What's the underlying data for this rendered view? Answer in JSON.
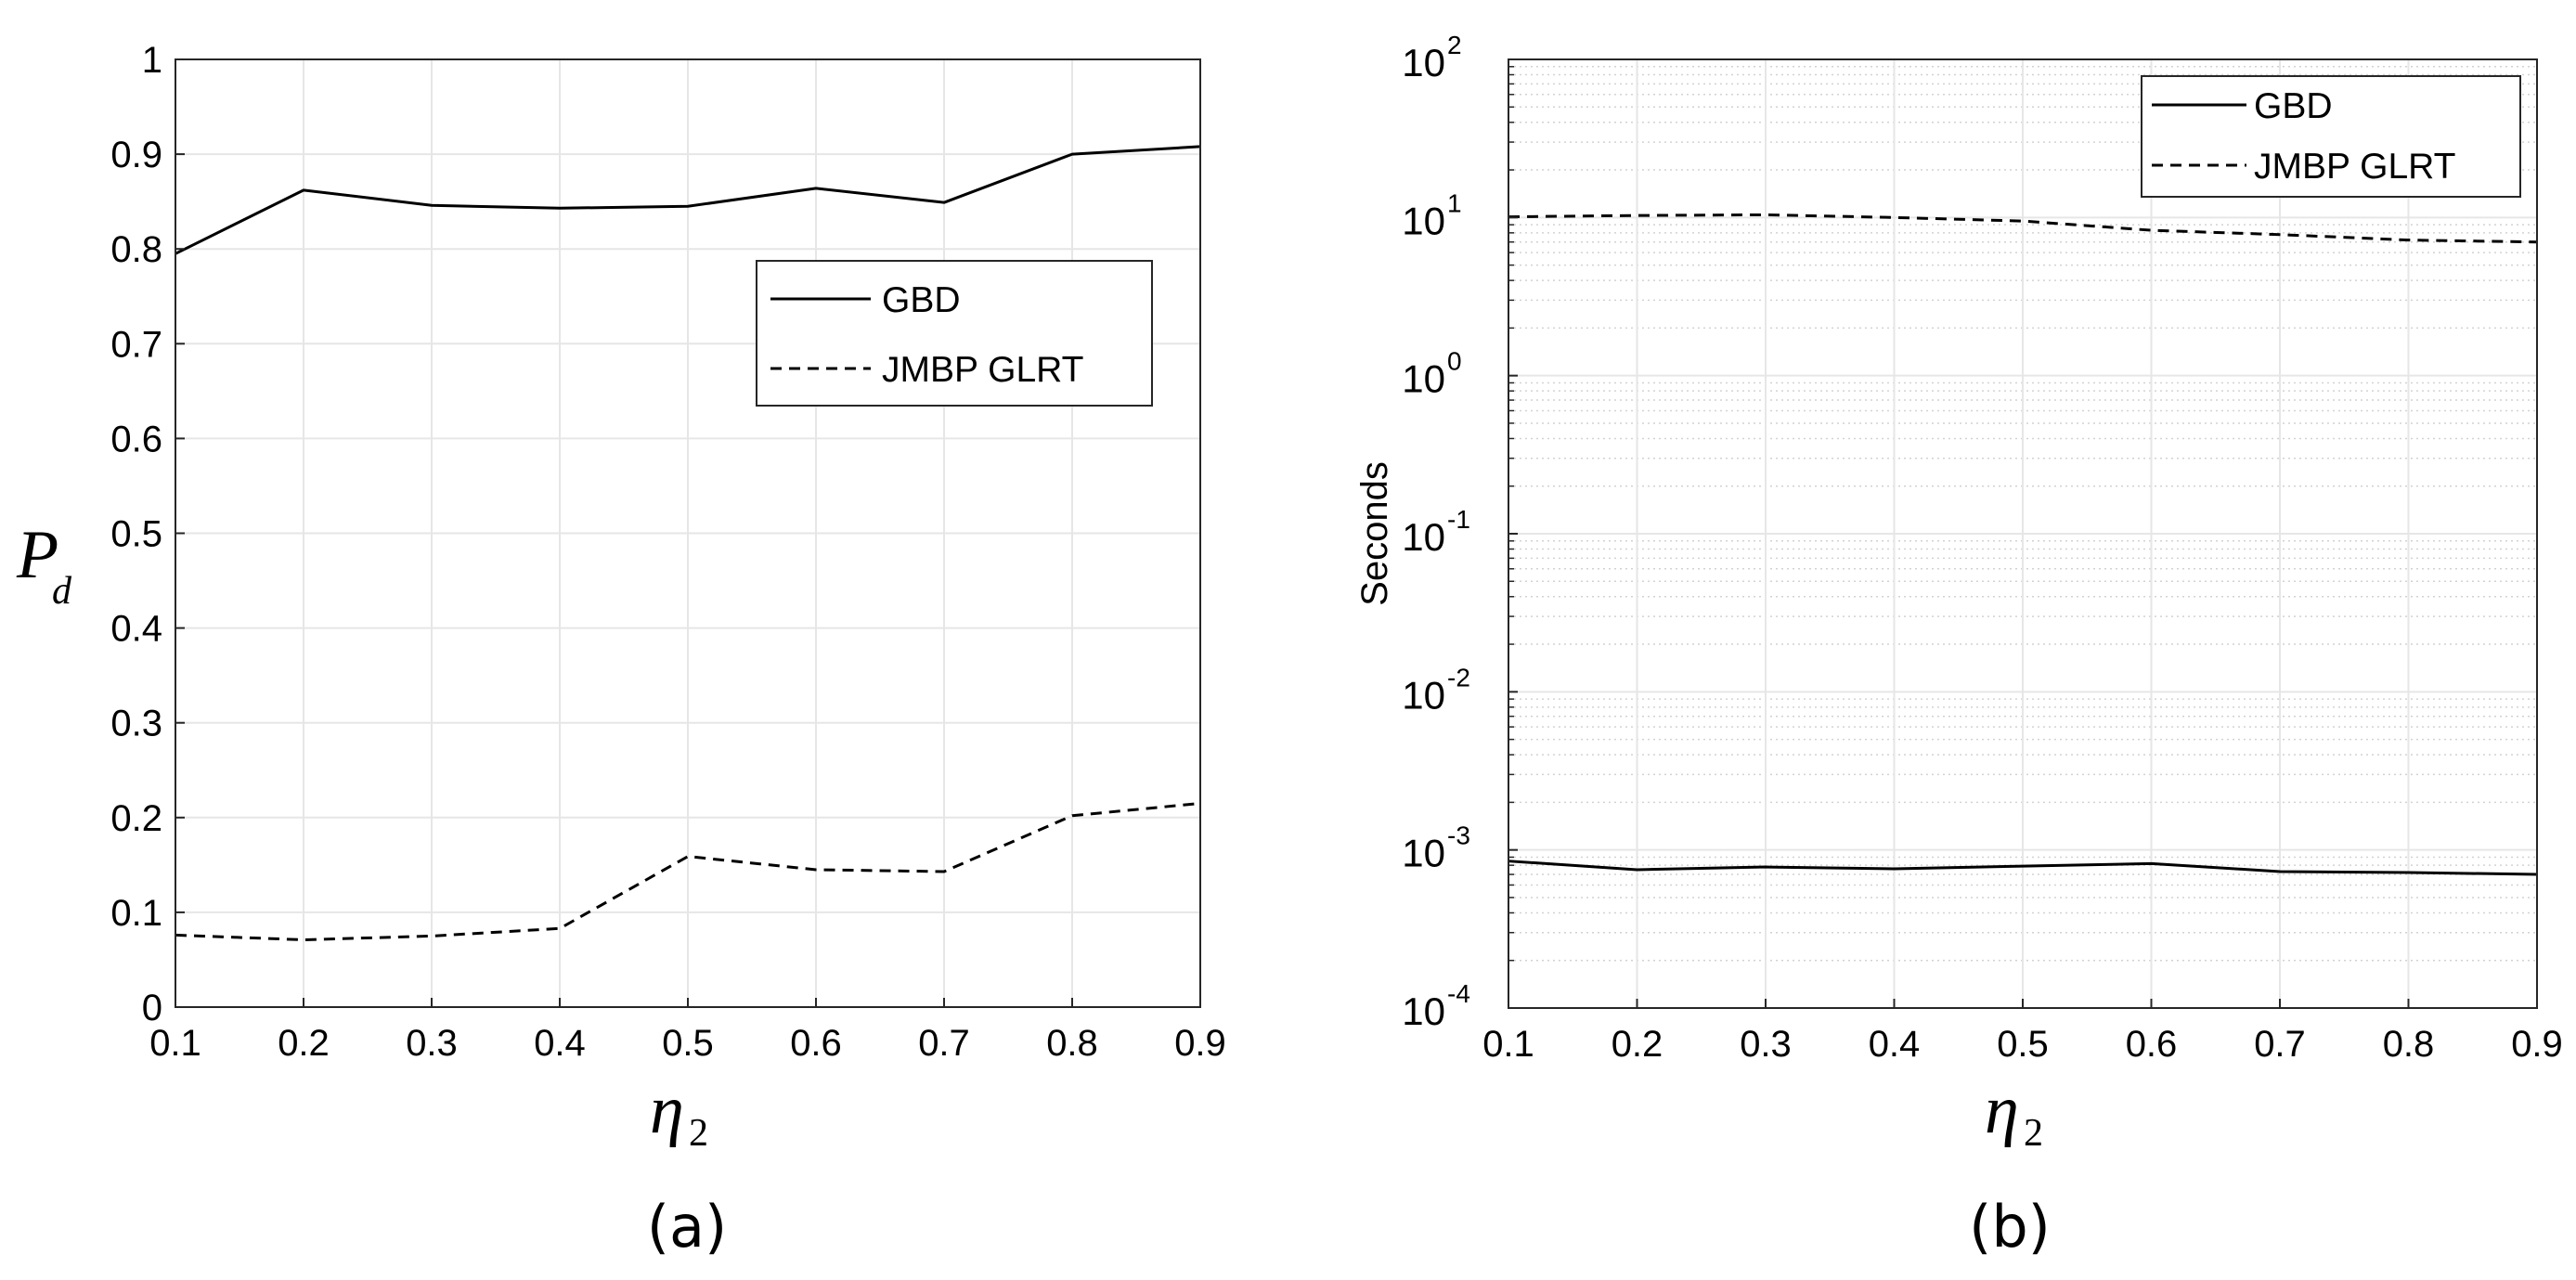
{
  "chart_data": [
    {
      "id": "a",
      "type": "line",
      "caption": "(a)",
      "xlabel": "η",
      "xlabel_sub": "2",
      "ylabel": "P",
      "ylabel_sub": "d",
      "xlim": [
        0.1,
        0.9
      ],
      "ylim": [
        0,
        1
      ],
      "grid": true,
      "legend_position": "upper-right-inside",
      "xticks": [
        {
          "v": 0.1,
          "label": "0.1"
        },
        {
          "v": 0.2,
          "label": "0.2"
        },
        {
          "v": 0.3,
          "label": "0.3"
        },
        {
          "v": 0.4,
          "label": "0.4"
        },
        {
          "v": 0.5,
          "label": "0.5"
        },
        {
          "v": 0.6,
          "label": "0.6"
        },
        {
          "v": 0.7,
          "label": "0.7"
        },
        {
          "v": 0.8,
          "label": "0.8"
        },
        {
          "v": 0.9,
          "label": "0.9"
        }
      ],
      "yticks": [
        {
          "v": 0,
          "label": "0"
        },
        {
          "v": 0.1,
          "label": "0.1"
        },
        {
          "v": 0.2,
          "label": "0.2"
        },
        {
          "v": 0.3,
          "label": "0.3"
        },
        {
          "v": 0.4,
          "label": "0.4"
        },
        {
          "v": 0.5,
          "label": "0.5"
        },
        {
          "v": 0.6,
          "label": "0.6"
        },
        {
          "v": 0.7,
          "label": "0.7"
        },
        {
          "v": 0.8,
          "label": "0.8"
        },
        {
          "v": 0.9,
          "label": "0.9"
        },
        {
          "v": 1,
          "label": "1"
        }
      ],
      "x": [
        0.1,
        0.2,
        0.3,
        0.4,
        0.5,
        0.6,
        0.7,
        0.8,
        0.9
      ],
      "series": [
        {
          "name": "GBD",
          "style": "solid",
          "values": [
            0.795,
            0.862,
            0.846,
            0.843,
            0.845,
            0.864,
            0.849,
            0.9,
            0.908
          ]
        },
        {
          "name": "JMBP GLRT",
          "style": "dashed",
          "values": [
            0.076,
            0.071,
            0.075,
            0.083,
            0.159,
            0.145,
            0.143,
            0.202,
            0.215
          ]
        }
      ]
    },
    {
      "id": "b",
      "type": "line",
      "caption": "(b)",
      "xlabel": "η",
      "xlabel_sub": "2",
      "ylabel": "Seconds",
      "yscale": "log",
      "xlim": [
        0.1,
        0.9
      ],
      "ylim": [
        0.0001,
        100
      ],
      "grid": true,
      "minor_grid": true,
      "legend_position": "top-right",
      "xticks": [
        {
          "v": 0.1,
          "label": "0.1"
        },
        {
          "v": 0.2,
          "label": "0.2"
        },
        {
          "v": 0.3,
          "label": "0.3"
        },
        {
          "v": 0.4,
          "label": "0.4"
        },
        {
          "v": 0.5,
          "label": "0.5"
        },
        {
          "v": 0.6,
          "label": "0.6"
        },
        {
          "v": 0.7,
          "label": "0.7"
        },
        {
          "v": 0.8,
          "label": "0.8"
        },
        {
          "v": 0.9,
          "label": "0.9"
        }
      ],
      "yticks": [
        {
          "exp": -4,
          "base": "10",
          "sup": "-4"
        },
        {
          "exp": -3,
          "base": "10",
          "sup": "-3"
        },
        {
          "exp": -2,
          "base": "10",
          "sup": "-2"
        },
        {
          "exp": -1,
          "base": "10",
          "sup": "-1"
        },
        {
          "exp": 0,
          "base": "10",
          "sup": "0"
        },
        {
          "exp": 1,
          "base": "10",
          "sup": "1"
        },
        {
          "exp": 2,
          "base": "10",
          "sup": "2"
        }
      ],
      "x": [
        0.1,
        0.2,
        0.3,
        0.4,
        0.5,
        0.6,
        0.7,
        0.8,
        0.9
      ],
      "series": [
        {
          "name": "GBD",
          "style": "solid",
          "values": [
            0.00085,
            0.00075,
            0.00078,
            0.00076,
            0.00079,
            0.00082,
            0.00073,
            0.00072,
            0.0007
          ]
        },
        {
          "name": "JMBP GLRT",
          "style": "dashed",
          "values": [
            10.1,
            10.3,
            10.4,
            10.0,
            9.5,
            8.3,
            7.8,
            7.2,
            7.0
          ]
        }
      ]
    }
  ]
}
